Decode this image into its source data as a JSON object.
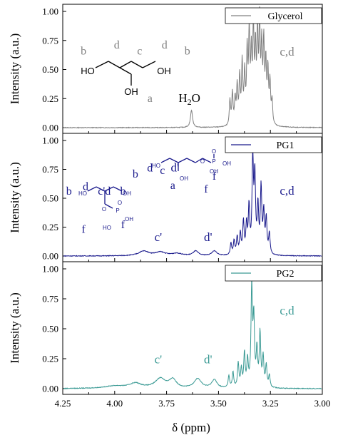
{
  "chart_data": [
    {
      "type": "line",
      "series": [
        {
          "name": "Glycerol",
          "color": "#808080"
        }
      ],
      "ylabel": "Intensity (a.u.)",
      "xlim": [
        4.25,
        3.0
      ],
      "ylim": [
        0,
        1.0
      ],
      "yticks": [
        "0.00",
        "0.25",
        "0.50",
        "0.75",
        "1.00"
      ],
      "peaks": [
        {
          "x": 3.63,
          "y": 0.15,
          "w": 0.006
        },
        {
          "x": 3.445,
          "y": 0.22,
          "w": 0.0035
        },
        {
          "x": 3.433,
          "y": 0.28,
          "w": 0.0035
        },
        {
          "x": 3.42,
          "y": 0.22,
          "w": 0.0035
        },
        {
          "x": 3.41,
          "y": 0.33,
          "w": 0.0035
        },
        {
          "x": 3.398,
          "y": 0.4,
          "w": 0.0035
        },
        {
          "x": 3.386,
          "y": 0.52,
          "w": 0.0035
        },
        {
          "x": 3.374,
          "y": 0.42,
          "w": 0.0035
        },
        {
          "x": 3.362,
          "y": 0.6,
          "w": 0.0035
        },
        {
          "x": 3.352,
          "y": 0.77,
          "w": 0.0035
        },
        {
          "x": 3.342,
          "y": 0.55,
          "w": 0.0035
        },
        {
          "x": 3.332,
          "y": 0.8,
          "w": 0.0035
        },
        {
          "x": 3.322,
          "y": 0.6,
          "w": 0.0035
        },
        {
          "x": 3.312,
          "y": 0.75,
          "w": 0.0035
        },
        {
          "x": 3.302,
          "y": 0.82,
          "w": 0.0035
        },
        {
          "x": 3.292,
          "y": 0.62,
          "w": 0.0035
        },
        {
          "x": 3.282,
          "y": 0.67,
          "w": 0.0035
        },
        {
          "x": 3.272,
          "y": 0.5,
          "w": 0.0035
        },
        {
          "x": 3.262,
          "y": 0.45,
          "w": 0.0035
        },
        {
          "x": 3.252,
          "y": 0.35,
          "w": 0.0035
        },
        {
          "x": 3.242,
          "y": 0.2,
          "w": 0.0035
        }
      ],
      "annotations": [
        {
          "text": "c,d",
          "x": 3.17,
          "y": 0.62
        },
        {
          "text": "a",
          "x": 3.83,
          "y": 0.22
        },
        {
          "text": "b",
          "x": 4.15,
          "y": 0.63
        },
        {
          "text": "d",
          "x": 3.99,
          "y": 0.68
        },
        {
          "text": "c",
          "x": 3.88,
          "y": 0.63
        },
        {
          "text": "d",
          "x": 3.76,
          "y": 0.68
        },
        {
          "text": "b",
          "x": 3.65,
          "y": 0.63
        },
        {
          "text": "H2O",
          "x": 3.64,
          "y": 0.22
        }
      ]
    },
    {
      "type": "line",
      "series": [
        {
          "name": "PG1",
          "color": "#1a1a8c"
        }
      ],
      "ylabel": "Intensity (a.u.)",
      "xlim": [
        4.25,
        3.0
      ],
      "ylim": [
        0,
        1.0
      ],
      "yticks": [
        "0.00",
        "0.25",
        "0.50",
        "0.75",
        "1.00"
      ],
      "peaks": [
        {
          "x": 3.86,
          "y": 0.04,
          "w": 0.03
        },
        {
          "x": 3.78,
          "y": 0.03,
          "w": 0.03
        },
        {
          "x": 3.7,
          "y": 0.02,
          "w": 0.03
        },
        {
          "x": 3.61,
          "y": 0.04,
          "w": 0.015
        },
        {
          "x": 3.52,
          "y": 0.04,
          "w": 0.015
        },
        {
          "x": 3.44,
          "y": 0.1,
          "w": 0.004
        },
        {
          "x": 3.425,
          "y": 0.12,
          "w": 0.004
        },
        {
          "x": 3.41,
          "y": 0.15,
          "w": 0.004
        },
        {
          "x": 3.395,
          "y": 0.18,
          "w": 0.004
        },
        {
          "x": 3.38,
          "y": 0.28,
          "w": 0.004
        },
        {
          "x": 3.365,
          "y": 0.25,
          "w": 0.004
        },
        {
          "x": 3.353,
          "y": 0.4,
          "w": 0.004
        },
        {
          "x": 3.335,
          "y": 0.82,
          "w": 0.004
        },
        {
          "x": 3.325,
          "y": 0.65,
          "w": 0.004
        },
        {
          "x": 3.31,
          "y": 0.4,
          "w": 0.004
        },
        {
          "x": 3.295,
          "y": 0.57,
          "w": 0.004
        },
        {
          "x": 3.282,
          "y": 0.35,
          "w": 0.004
        },
        {
          "x": 3.27,
          "y": 0.3,
          "w": 0.004
        },
        {
          "x": 3.255,
          "y": 0.18,
          "w": 0.004
        }
      ],
      "annotations": [
        {
          "text": "c,d",
          "x": 3.17,
          "y": 0.53
        },
        {
          "text": "c'",
          "x": 3.79,
          "y": 0.13
        },
        {
          "text": "d'",
          "x": 3.55,
          "y": 0.13
        },
        {
          "text": "f",
          "x": 4.15,
          "y": 0.2
        },
        {
          "text": "f",
          "x": 3.96,
          "y": 0.24
        },
        {
          "text": "b",
          "x": 4.22,
          "y": 0.53
        },
        {
          "text": "d",
          "x": 4.14,
          "y": 0.57
        },
        {
          "text": "c'd",
          "x": 4.05,
          "y": 0.53
        },
        {
          "text": "b",
          "x": 3.96,
          "y": 0.53
        },
        {
          "text": "b",
          "x": 3.9,
          "y": 0.68
        },
        {
          "text": "d",
          "x": 3.83,
          "y": 0.73
        },
        {
          "text": "c",
          "x": 3.77,
          "y": 0.71
        },
        {
          "text": "d'",
          "x": 3.71,
          "y": 0.73
        },
        {
          "text": "a",
          "x": 3.72,
          "y": 0.58
        },
        {
          "text": "f",
          "x": 3.52,
          "y": 0.66
        },
        {
          "text": "f",
          "x": 3.56,
          "y": 0.55
        }
      ]
    },
    {
      "type": "line",
      "series": [
        {
          "name": "PG2",
          "color": "#3a9a94"
        }
      ],
      "ylabel": "Intensity (a.u.)",
      "xlabel": "δ (ppm)",
      "xlim": [
        4.25,
        3.0
      ],
      "ylim": [
        0,
        1.0
      ],
      "yticks": [
        "0.00",
        "0.25",
        "0.50",
        "0.75",
        "1.00"
      ],
      "xticks": [
        "4.25",
        "4.00",
        "3.75",
        "3.50",
        "3.25",
        "3.00"
      ],
      "peaks": [
        {
          "x": 3.9,
          "y": 0.04,
          "w": 0.035
        },
        {
          "x": 3.78,
          "y": 0.08,
          "w": 0.03
        },
        {
          "x": 3.72,
          "y": 0.07,
          "w": 0.02
        },
        {
          "x": 3.6,
          "y": 0.08,
          "w": 0.02
        },
        {
          "x": 3.52,
          "y": 0.07,
          "w": 0.015
        },
        {
          "x": 4.0,
          "y": 0.02,
          "w": 0.06
        },
        {
          "x": 3.45,
          "y": 0.1,
          "w": 0.004
        },
        {
          "x": 3.43,
          "y": 0.13,
          "w": 0.004
        },
        {
          "x": 3.405,
          "y": 0.2,
          "w": 0.004
        },
        {
          "x": 3.39,
          "y": 0.15,
          "w": 0.004
        },
        {
          "x": 3.375,
          "y": 0.28,
          "w": 0.004
        },
        {
          "x": 3.36,
          "y": 0.22,
          "w": 0.004
        },
        {
          "x": 3.34,
          "y": 0.83,
          "w": 0.004
        },
        {
          "x": 3.33,
          "y": 0.55,
          "w": 0.004
        },
        {
          "x": 3.315,
          "y": 0.3,
          "w": 0.004
        },
        {
          "x": 3.3,
          "y": 0.45,
          "w": 0.004
        },
        {
          "x": 3.285,
          "y": 0.25,
          "w": 0.004
        },
        {
          "x": 3.27,
          "y": 0.18,
          "w": 0.004
        },
        {
          "x": 3.255,
          "y": 0.1,
          "w": 0.004
        }
      ],
      "annotations": [
        {
          "text": "c,d",
          "x": 3.17,
          "y": 0.62
        },
        {
          "text": "c'",
          "x": 3.79,
          "y": 0.21
        },
        {
          "text": "d'",
          "x": 3.55,
          "y": 0.21
        }
      ]
    }
  ],
  "molecule_labels": {
    "HO": "HO",
    "OH": "OH",
    "O": "O",
    "P": "P"
  }
}
